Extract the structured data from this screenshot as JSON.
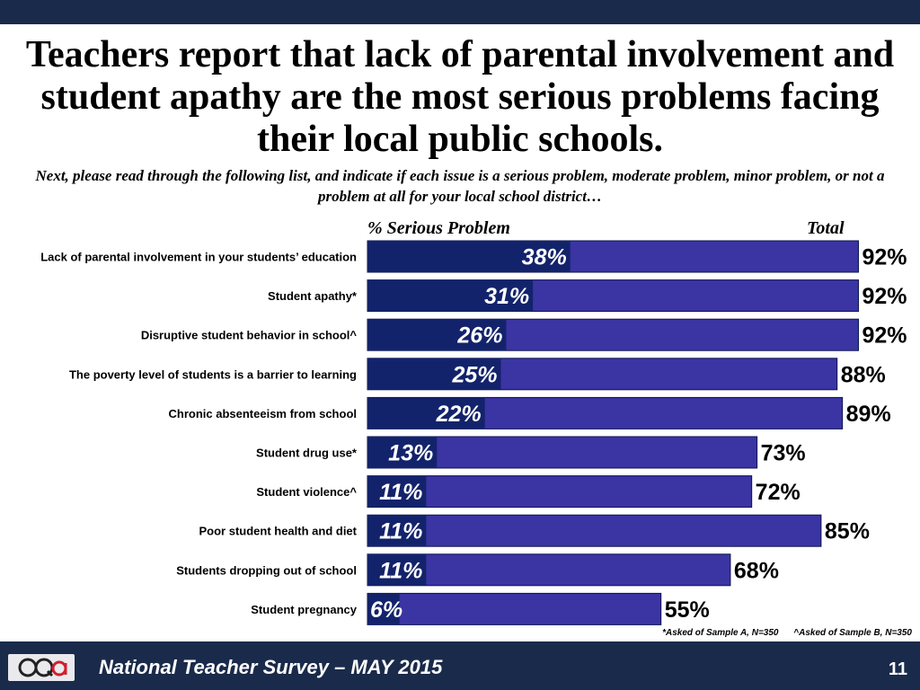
{
  "title": "Teachers report that lack of parental involvement and student apathy are the most serious problems facing their local public schools.",
  "subtitle": "Next, please read through the following list, and indicate if each issue is a serious problem, moderate problem, minor problem, or not a problem at all for your local school district…",
  "chart_data": {
    "type": "bar",
    "orientation": "horizontal",
    "series_headers": {
      "serious": "% Serious Problem",
      "total": "Total"
    },
    "categories": [
      "Lack of parental involvement in your students’ education",
      "Student apathy*",
      "Disruptive student behavior in school^",
      "The poverty level of students is a barrier to learning",
      "Chronic absenteeism from school",
      "Student drug use*",
      "Student violence^",
      "Poor student health and diet",
      "Students dropping out of school",
      "Student pregnancy"
    ],
    "series": [
      {
        "name": "% Serious Problem",
        "values": [
          38,
          31,
          26,
          25,
          22,
          13,
          11,
          11,
          11,
          6
        ],
        "color": "#13236b"
      },
      {
        "name": "Total",
        "values": [
          92,
          92,
          92,
          88,
          89,
          73,
          72,
          85,
          68,
          55
        ],
        "color": "#3b34a3"
      }
    ],
    "value_labels_serious": [
      "38%",
      "31%",
      "26%",
      "25%",
      "22%",
      "13%",
      "11%",
      "11%",
      "11%",
      "6%"
    ],
    "value_labels_total": [
      "92%",
      "92%",
      "92%",
      "88%",
      "89%",
      "73%",
      "72%",
      "85%",
      "68%",
      "55%"
    ],
    "xlim": [
      0,
      100
    ],
    "grid": false,
    "legend": "none"
  },
  "notes": {
    "sample_a": "*Asked of Sample A, N=350",
    "sample_b": "^Asked of Sample B, N=350"
  },
  "footer": {
    "logo": "GQR",
    "text": "National Teacher Survey – MAY 2015",
    "page": "11"
  },
  "colors": {
    "header_bar": "#1a2a4a",
    "serious_bar": "#13236b",
    "total_bar": "#3b34a3",
    "logo_red": "#d0202a"
  }
}
